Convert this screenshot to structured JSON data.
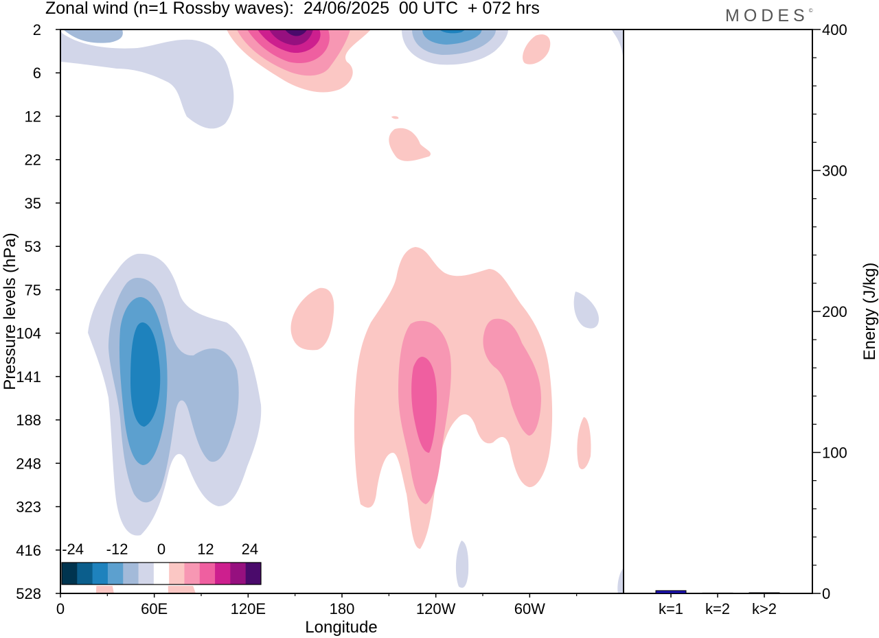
{
  "header": {
    "title": "Zonal wind (n=1 Rossby waves):  24/06/2025  00 UTC  + 072 hrs",
    "logo": "MODES",
    "logo_mark": "©"
  },
  "chart_data": [
    {
      "type": "heatmap",
      "title": "Zonal wind (n=1 Rossby waves):  24/06/2025  00 UTC  + 072 hrs",
      "xlabel": "Longitude",
      "ylabel": "Pressure levels (hPa)",
      "x_ticks": [
        "0",
        "60E",
        "120E",
        "180",
        "120W",
        "60W"
      ],
      "x_tick_values": [
        0,
        60,
        120,
        180,
        240,
        300
      ],
      "xlim": [
        0,
        360
      ],
      "y_ticks": [
        "2",
        "6",
        "12",
        "22",
        "35",
        "53",
        "75",
        "104",
        "141",
        "188",
        "248",
        "323",
        "416",
        "528"
      ],
      "colorbar": {
        "tick_labels": [
          "-24",
          "-12",
          "0",
          "12",
          "24"
        ],
        "colors": [
          "#00344f",
          "#0b5e8c",
          "#1e82bd",
          "#5ca0cf",
          "#a3bad9",
          "#d2d6e9",
          "#ffffff",
          "#fbc7c4",
          "#f797b3",
          "#ef5fa0",
          "#cd1f8e",
          "#96107f",
          "#4a0a6b"
        ]
      },
      "features": [
        {
          "name": "negative-center-upper-west",
          "lon": 30,
          "level": "2",
          "sign": "negative",
          "peak": -6
        },
        {
          "name": "positive-center-upper",
          "lon": 150,
          "level": "2",
          "sign": "positive",
          "peak": 27
        },
        {
          "name": "negative-center-upper-east",
          "lon": 252,
          "level": "2",
          "sign": "negative",
          "peak": -15
        },
        {
          "name": "negative-center-troposphere",
          "lon": 52,
          "level": "141",
          "sign": "negative",
          "peak": -18
        },
        {
          "name": "positive-center-troposphere",
          "lon": 235,
          "level": "188",
          "sign": "positive",
          "peak": 15
        },
        {
          "name": "positive-center-troposphere-east",
          "lon": 280,
          "level": "141",
          "sign": "positive",
          "peak": 9
        }
      ]
    },
    {
      "type": "bar",
      "xlabel": "",
      "ylabel": "Energy (J/kg)",
      "categories": [
        "k=1",
        "k=2",
        "k>2"
      ],
      "values": [
        2,
        0.3,
        0.5
      ],
      "ylim": [
        0,
        400
      ],
      "y_ticks": [
        "0",
        "100",
        "200",
        "300",
        "400"
      ],
      "bar_colors": [
        "#1a10b0",
        "#1a10b0",
        "#1a10b0"
      ]
    }
  ]
}
